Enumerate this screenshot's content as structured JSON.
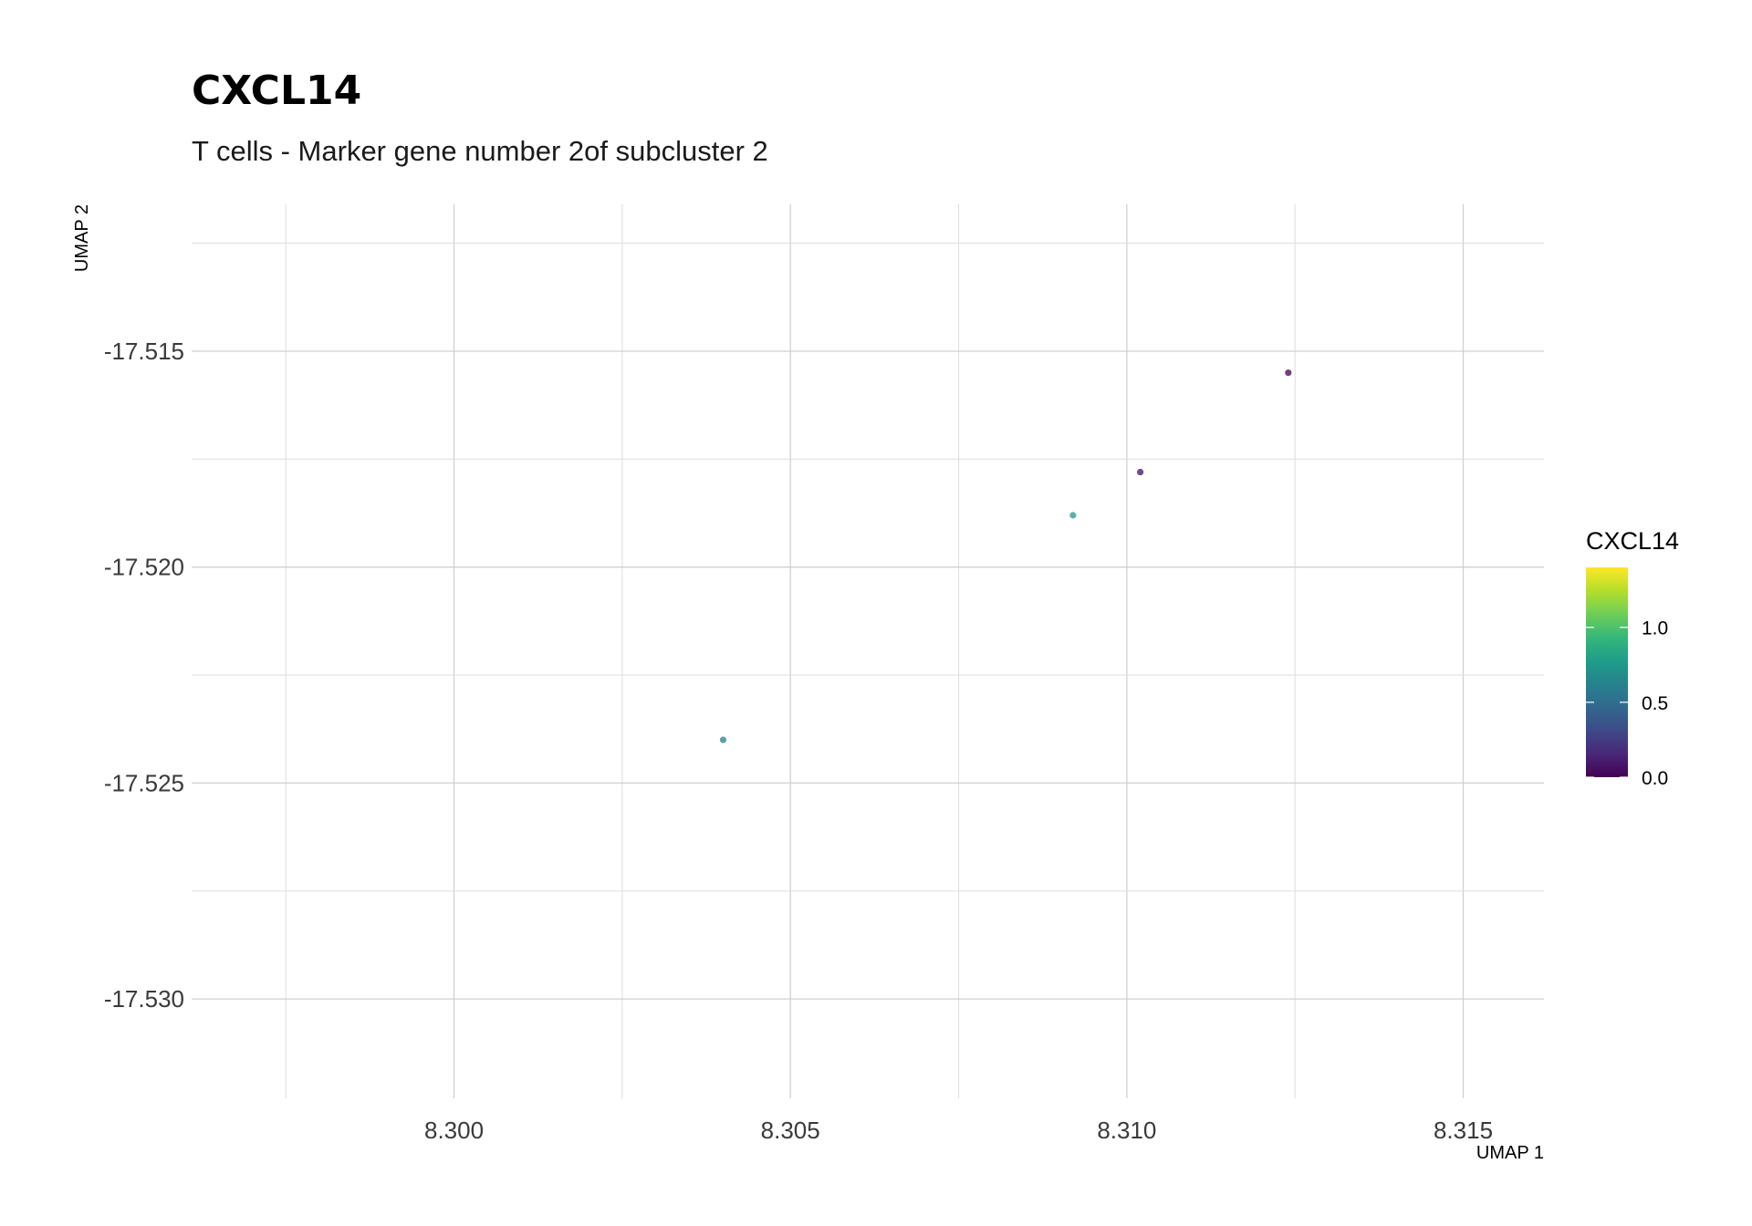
{
  "chart_data": {
    "type": "scatter",
    "title": "CXCL14",
    "subtitle": "T cells - Marker gene number 2of subcluster 2",
    "xlabel": "UMAP 1",
    "ylabel": "UMAP 2",
    "xlim": [
      8.2961,
      8.3162
    ],
    "ylim": [
      -17.5323,
      -17.5116
    ],
    "x_ticks": [
      8.3,
      8.305,
      8.31,
      8.315
    ],
    "x_tick_labels": [
      "8.300",
      "8.305",
      "8.310",
      "8.315"
    ],
    "y_ticks": [
      -17.515,
      -17.52,
      -17.525,
      -17.53
    ],
    "y_tick_labels": [
      "-17.515",
      "-17.520",
      "-17.525",
      "-17.530"
    ],
    "grid": true,
    "points": [
      {
        "x": 8.3124,
        "y": -17.5155,
        "value": 0.0
      },
      {
        "x": 8.3102,
        "y": -17.5178,
        "value": 0.05
      },
      {
        "x": 8.3092,
        "y": -17.5188,
        "value": 0.75
      },
      {
        "x": 8.304,
        "y": -17.524,
        "value": 0.6
      }
    ],
    "legend": {
      "title": "CXCL14",
      "position": "right",
      "range": [
        0.0,
        1.4
      ],
      "ticks": [
        0.0,
        0.5,
        1.0
      ],
      "tick_labels": [
        "0.0",
        "0.5",
        "1.0"
      ],
      "colormap": "viridis"
    }
  },
  "colors": {
    "viridis": [
      "#440154",
      "#482878",
      "#3e4a89",
      "#31688e",
      "#26828e",
      "#1f9e89",
      "#35b779",
      "#6ece58",
      "#b5de2b",
      "#fde725"
    ]
  }
}
